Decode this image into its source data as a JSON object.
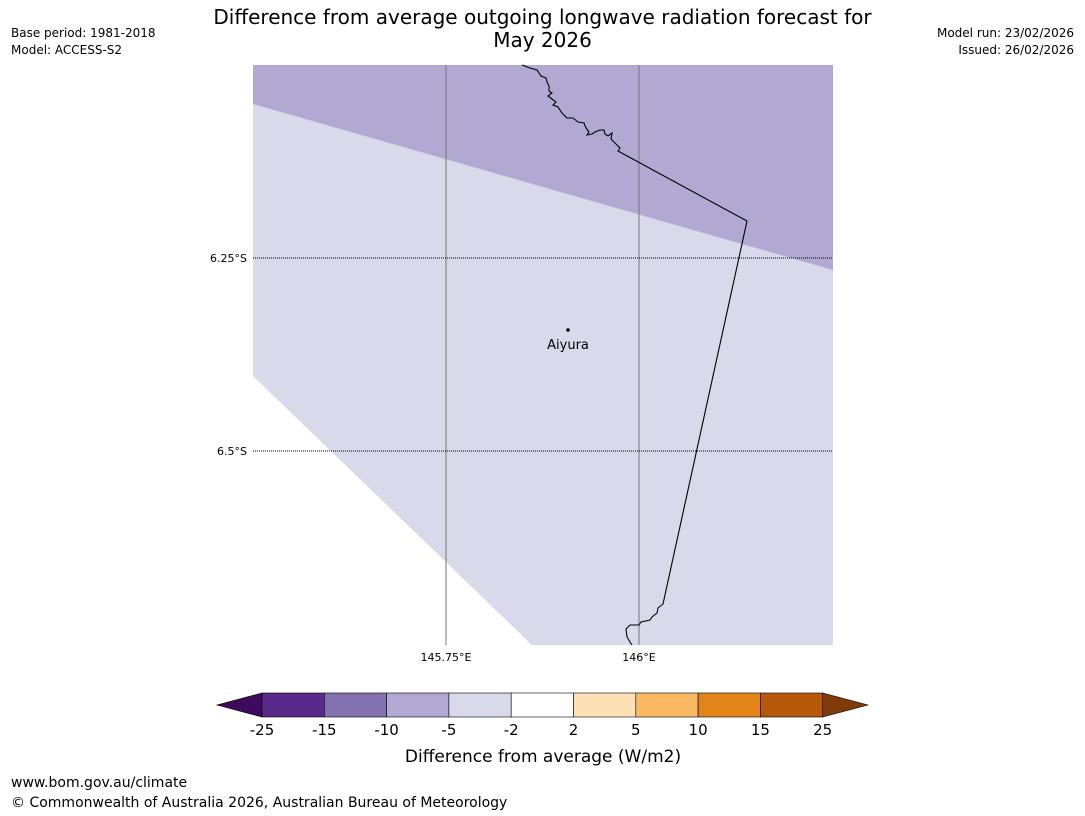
{
  "title_line1": "Difference from average outgoing longwave radiation forecast for",
  "title_line2": "May 2026",
  "meta_left": {
    "base_period": "Base period: 1981-2018",
    "model": "Model: ACCESS-S2"
  },
  "meta_right": {
    "model_run": "Model run: 23/02/2026",
    "issued": "Issued: 26/02/2026"
  },
  "map": {
    "lat_labels": [
      "6.25°S",
      "6.5°S"
    ],
    "lon_labels": [
      "145.75°E",
      "146°E"
    ],
    "place_label": "Aiyura"
  },
  "colorbar": {
    "ticks": [
      "-25",
      "-15",
      "-10",
      "-5",
      "-2",
      "2",
      "5",
      "10",
      "15",
      "25"
    ],
    "colors": [
      "#5a2a8a",
      "#8372af",
      "#b1a9d2",
      "#d8d9ea",
      "#ffffff",
      "#fde0b3",
      "#fbb862",
      "#e3841a",
      "#b6570a"
    ],
    "under_color": "#3d0a5e",
    "over_color": "#7f3b08",
    "label": "Difference from average (W/m2)"
  },
  "footer": {
    "url": "www.bom.gov.au/climate",
    "copyright": "© Commonwealth of Australia 2026, Australian Bureau of Meteorology"
  }
}
